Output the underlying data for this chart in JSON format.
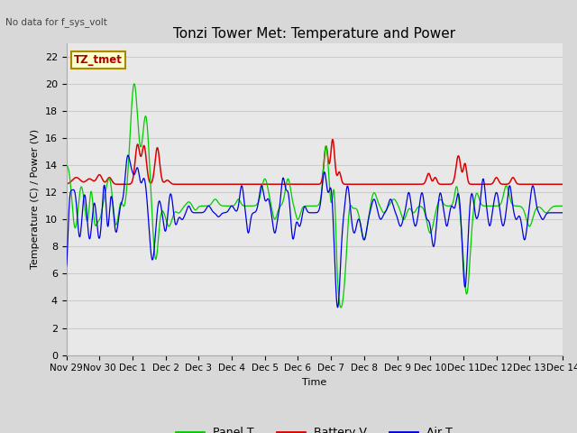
{
  "title": "Tonzi Tower Met: Temperature and Power",
  "top_left_text": "No data for f_sys_volt",
  "ylabel": "Temperature (C) / Power (V)",
  "xlabel": "Time",
  "ylim": [
    0,
    23
  ],
  "yticks": [
    0,
    2,
    4,
    6,
    8,
    10,
    12,
    14,
    16,
    18,
    20,
    22
  ],
  "xlim": [
    0,
    15
  ],
  "xtick_labels": [
    "Nov 29",
    "Nov 30",
    "Dec 1",
    "Dec 2",
    "Dec 3",
    "Dec 4",
    "Dec 5",
    "Dec 6",
    "Dec 7",
    "Dec 8",
    "Dec 9",
    "Dec 10",
    "Dec 11",
    "Dec 12",
    "Dec 13",
    "Dec 14"
  ],
  "bg_color": "#d8d8d8",
  "plot_bg_color": "#e8e8e8",
  "panel_color": "#00cc00",
  "battery_color": "#dd0000",
  "air_color": "#0000dd",
  "watermark_text": "TZ_tmet",
  "watermark_bg": "#ffffcc",
  "watermark_border": "#aa8800",
  "title_fontsize": 11,
  "label_fontsize": 8,
  "tick_fontsize": 8
}
